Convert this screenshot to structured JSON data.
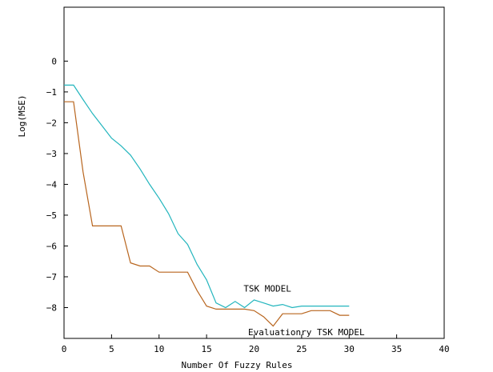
{
  "chart_data": {
    "type": "line",
    "title": "",
    "xlabel": "Number Of Fuzzy Rules",
    "ylabel": "Log(MSE)",
    "xlim": [
      0,
      40
    ],
    "ylim": [
      -9,
      1.75
    ],
    "x_ticks": [
      0,
      5,
      10,
      15,
      20,
      25,
      30,
      35,
      40
    ],
    "x_tick_labels": [
      "0",
      "5",
      "10",
      "15",
      "20",
      "25",
      "30",
      "35",
      "40"
    ],
    "y_ticks": [
      0,
      -1,
      -2,
      -3,
      -4,
      -5,
      -6,
      -7,
      -8
    ],
    "y_tick_labels": [
      "0",
      "−1",
      "−2",
      "−3",
      "−4",
      "−5",
      "−6",
      "−7",
      "−8"
    ],
    "grid": false,
    "series": [
      {
        "name": "TSK MODEL",
        "color": "#22b5bd",
        "x": [
          0,
          1,
          2,
          3,
          4,
          5,
          6,
          7,
          8,
          9,
          10,
          11,
          12,
          13,
          14,
          15,
          16,
          17,
          18,
          19,
          20,
          21,
          22,
          23,
          24,
          25,
          26,
          27,
          28,
          29,
          30
        ],
        "y": [
          -0.78,
          -0.78,
          -1.25,
          -1.7,
          -2.1,
          -2.5,
          -2.75,
          -3.05,
          -3.5,
          -4.0,
          -4.45,
          -4.95,
          -5.6,
          -5.95,
          -6.6,
          -7.1,
          -7.85,
          -8.0,
          -7.8,
          -8.0,
          -7.75,
          -7.85,
          -7.95,
          -7.9,
          -8.0,
          -7.95,
          -7.95,
          -7.95,
          -7.95,
          -7.95,
          -7.95
        ]
      },
      {
        "name": "Evaluationry TSK MODEL",
        "color": "#b8651e",
        "x": [
          0,
          1,
          2,
          3,
          4,
          5,
          6,
          7,
          8,
          9,
          10,
          11,
          12,
          13,
          14,
          15,
          16,
          17,
          18,
          19,
          20,
          21,
          22,
          23,
          24,
          25,
          26,
          27,
          28,
          29,
          30
        ],
        "y": [
          -1.32,
          -1.32,
          -3.6,
          -5.35,
          -5.35,
          -5.35,
          -5.35,
          -6.55,
          -6.65,
          -6.65,
          -6.85,
          -6.85,
          -6.85,
          -6.85,
          -7.45,
          -7.95,
          -8.05,
          -8.05,
          -8.05,
          -8.05,
          -8.1,
          -8.3,
          -8.6,
          -8.2,
          -8.2,
          -8.2,
          -8.1,
          -8.1,
          -8.1,
          -8.25,
          -8.25
        ]
      }
    ]
  }
}
